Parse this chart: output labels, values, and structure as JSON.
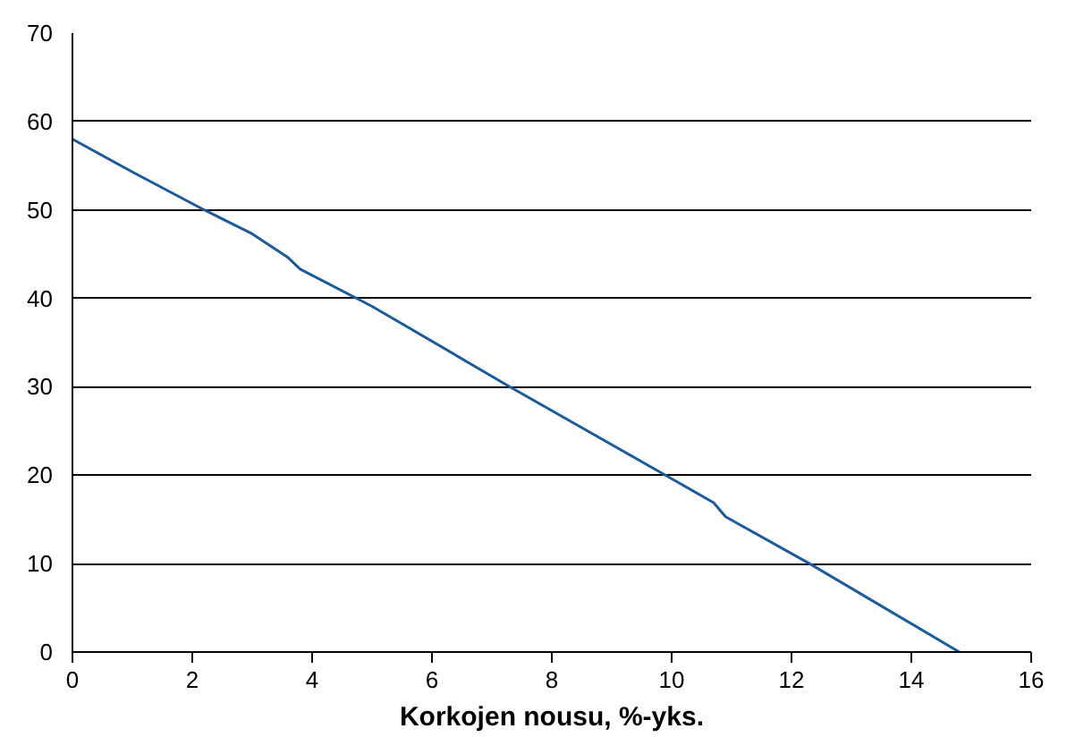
{
  "chart_data": {
    "type": "line",
    "xlabel": "Korkojen nousu, %-yks.",
    "x": [
      0,
      1,
      2.2,
      3,
      3.6,
      3.8,
      5,
      7.3,
      10,
      10.7,
      10.9,
      12.3,
      14.8
    ],
    "series": [
      {
        "color": "#1a5a9e",
        "values": [
          58,
          54.3,
          50,
          47.3,
          44.6,
          43.3,
          39.1,
          30,
          19.6,
          16.9,
          15.3,
          10,
          0
        ]
      }
    ],
    "xlim": [
      0,
      16
    ],
    "xticks": [
      0,
      2,
      4,
      6,
      8,
      10,
      12,
      14,
      16
    ],
    "ylim": [
      0,
      70
    ],
    "yticks": [
      0,
      10,
      20,
      30,
      40,
      50,
      60,
      70
    ],
    "grid": "y",
    "marker": "none",
    "line_style": "solid"
  }
}
